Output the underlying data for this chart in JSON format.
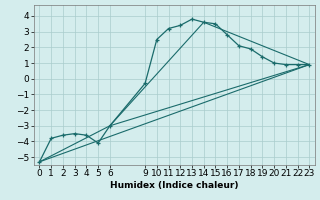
{
  "title": "",
  "xlabel": "Humidex (Indice chaleur)",
  "ylabel": "",
  "xlim": [
    -0.5,
    23.5
  ],
  "ylim": [
    -5.5,
    4.7
  ],
  "bg_color": "#d4eded",
  "grid_color": "#aacccc",
  "line_color": "#1a6b6b",
  "line1_x": [
    0,
    1,
    2,
    3,
    4,
    5,
    6,
    9,
    10,
    11,
    12,
    13,
    14,
    15,
    16,
    17,
    18,
    19,
    20,
    21,
    22,
    23
  ],
  "line1_y": [
    -5.3,
    -3.8,
    -3.6,
    -3.5,
    -3.6,
    -4.1,
    -3.0,
    -0.3,
    2.5,
    3.2,
    3.4,
    3.8,
    3.6,
    3.5,
    2.8,
    2.1,
    1.9,
    1.4,
    1.0,
    0.9,
    0.9,
    0.9
  ],
  "line2_x": [
    0,
    23
  ],
  "line2_y": [
    -5.3,
    0.9
  ],
  "line3_x": [
    6,
    23
  ],
  "line3_y": [
    -3.0,
    0.9
  ],
  "line4_x": [
    0,
    6,
    14,
    23
  ],
  "line4_y": [
    -5.3,
    -3.0,
    3.6,
    0.9
  ],
  "xticks": [
    0,
    1,
    2,
    3,
    4,
    5,
    6,
    9,
    10,
    11,
    12,
    13,
    14,
    15,
    16,
    17,
    18,
    19,
    20,
    21,
    22,
    23
  ],
  "yticks": [
    -5,
    -4,
    -3,
    -2,
    -1,
    0,
    1,
    2,
    3,
    4
  ],
  "fontsize": 6.5
}
